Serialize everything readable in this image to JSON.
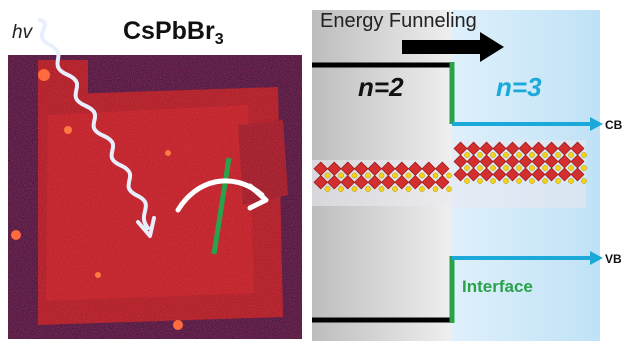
{
  "left_panel": {
    "hv_label": "hv",
    "compound_base": "CsPbBr",
    "compound_subscript": "3"
  },
  "right_panel": {
    "energy_funneling_label": "Energy Funneling",
    "n2_label": "n=2",
    "n3_label": "n=3",
    "cb_label": "CB",
    "vb_label": "VB",
    "interface_label": "Interface"
  },
  "colors": {
    "n3_accent": "#1aa9d9",
    "interface_green": "#2aa24a",
    "arrow_black": "#000000",
    "octahedra_red": "#d32f2f",
    "cs_yellow": "#f2d21b"
  },
  "icons": {
    "photon": "wavy-arrow-icon",
    "funneling": "right-arrow-icon"
  }
}
